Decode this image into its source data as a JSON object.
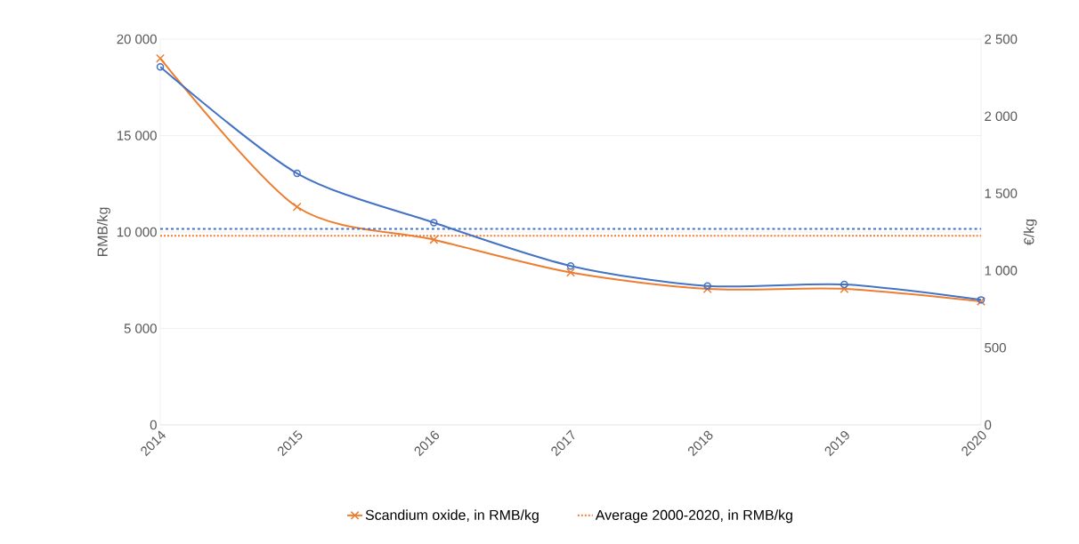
{
  "chart_data": {
    "type": "line",
    "ylabel": "RMB/kg",
    "y2label": "€/kg",
    "categories": [
      "2014",
      "2015",
      "2016",
      "2017",
      "2018",
      "2019",
      "2020"
    ],
    "series": [
      {
        "name": "Scandium oxide, in RMB/kg",
        "color": "#ed7d31",
        "marker": "cross",
        "axis": "y",
        "values": [
          19000,
          11300,
          9600,
          7900,
          7050,
          7050,
          6400
        ]
      },
      {
        "color": "#4472c4",
        "marker": "circle",
        "axis": "y2",
        "values": [
          2320,
          1630,
          1310,
          1030,
          900,
          910,
          810
        ]
      }
    ],
    "ylim": [
      0,
      20000
    ],
    "yticks": [
      0,
      {
        "value": 5000,
        "label": "5 000"
      },
      {
        "value": 10000,
        "label": "10 000"
      },
      {
        "value": 15000,
        "label": "15 000"
      },
      {
        "value": 20000,
        "label": "20 000"
      }
    ],
    "y2lim": [
      0,
      2500
    ],
    "y2ticks": [
      0,
      500,
      {
        "value": 1000,
        "label": "1 000"
      },
      {
        "value": 1500,
        "label": "1 500"
      },
      {
        "value": 2000,
        "label": "2 000"
      },
      {
        "value": 2500,
        "label": "2 500"
      }
    ],
    "ref_lines": [
      {
        "axis": "y",
        "value": 9800,
        "label": "Average 2000-2020, in RMB/kg",
        "color": "#ed7d31",
        "line_style": "dotted"
      },
      {
        "axis": "y2",
        "value": 1270,
        "color": "#4472c4",
        "line_style": "dashed"
      }
    ],
    "grid": "y",
    "legend": "bottom",
    "line_style": "solid"
  }
}
